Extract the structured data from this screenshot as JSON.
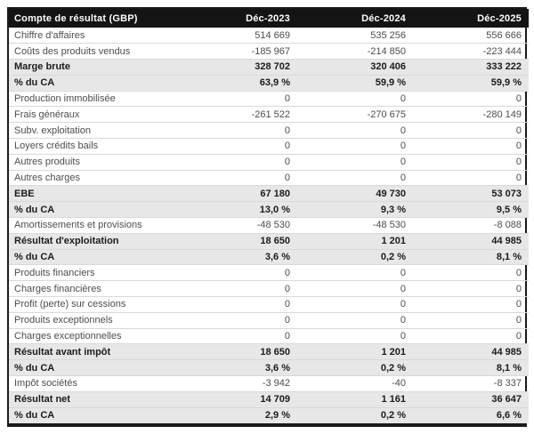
{
  "table": {
    "title": "Compte de résultat (GBP)",
    "columns": [
      "Déc-2023",
      "Déc-2024",
      "Déc-2025"
    ],
    "rows": [
      {
        "label": "Chiffre d'affaires",
        "values": [
          "514 669",
          "535 256",
          "556 666"
        ],
        "emphasis": false
      },
      {
        "label": "Coûts des produits vendus",
        "values": [
          "-185 967",
          "-214 850",
          "-223 444"
        ],
        "emphasis": false
      },
      {
        "label": "Marge brute",
        "values": [
          "328 702",
          "320 406",
          "333 222"
        ],
        "emphasis": true
      },
      {
        "label": "% du CA",
        "values": [
          "63,9 %",
          "59,9 %",
          "59,9 %"
        ],
        "emphasis": true
      },
      {
        "label": "Production immobilisée",
        "values": [
          "0",
          "0",
          "0"
        ],
        "emphasis": false
      },
      {
        "label": "Frais généraux",
        "values": [
          "-261 522",
          "-270 675",
          "-280 149"
        ],
        "emphasis": false
      },
      {
        "label": "Subv. exploitation",
        "values": [
          "0",
          "0",
          "0"
        ],
        "emphasis": false
      },
      {
        "label": "Loyers crédits bails",
        "values": [
          "0",
          "0",
          "0"
        ],
        "emphasis": false
      },
      {
        "label": "Autres produits",
        "values": [
          "0",
          "0",
          "0"
        ],
        "emphasis": false
      },
      {
        "label": "Autres charges",
        "values": [
          "0",
          "0",
          "0"
        ],
        "emphasis": false
      },
      {
        "label": "EBE",
        "values": [
          "67 180",
          "49 730",
          "53 073"
        ],
        "emphasis": true
      },
      {
        "label": "% du CA",
        "values": [
          "13,0 %",
          "9,3 %",
          "9,5 %"
        ],
        "emphasis": true
      },
      {
        "label": "Amortissements et provisions",
        "values": [
          "-48 530",
          "-48 530",
          "-8 088"
        ],
        "emphasis": false
      },
      {
        "label": "Résultat d'exploitation",
        "values": [
          "18 650",
          "1 201",
          "44 985"
        ],
        "emphasis": true
      },
      {
        "label": "% du CA",
        "values": [
          "3,6 %",
          "0,2 %",
          "8,1 %"
        ],
        "emphasis": true
      },
      {
        "label": "Produits financiers",
        "values": [
          "0",
          "0",
          "0"
        ],
        "emphasis": false
      },
      {
        "label": "Charges financières",
        "values": [
          "0",
          "0",
          "0"
        ],
        "emphasis": false
      },
      {
        "label": "Profit (perte) sur cessions",
        "values": [
          "0",
          "0",
          "0"
        ],
        "emphasis": false
      },
      {
        "label": "Produits exceptionnels",
        "values": [
          "0",
          "0",
          "0"
        ],
        "emphasis": false
      },
      {
        "label": "Charges exceptionnelles",
        "values": [
          "0",
          "0",
          "0"
        ],
        "emphasis": false
      },
      {
        "label": "Résultat avant impôt",
        "values": [
          "18 650",
          "1 201",
          "44 985"
        ],
        "emphasis": true
      },
      {
        "label": "% du CA",
        "values": [
          "3,6 %",
          "0,2 %",
          "8,1 %"
        ],
        "emphasis": true
      },
      {
        "label": "Impôt sociétés",
        "values": [
          "-3 942",
          "-40",
          "-8 337"
        ],
        "emphasis": false
      },
      {
        "label": "Résultat net",
        "values": [
          "14 709",
          "1 161",
          "36 647"
        ],
        "emphasis": true
      },
      {
        "label": "% du CA",
        "values": [
          "2,9 %",
          "0,2 %",
          "6,6 %"
        ],
        "emphasis": true
      }
    ],
    "colors": {
      "header_bg": "#141414",
      "header_text": "#ffffff",
      "emphasis_bg": "#e7e7e7",
      "row_border": "#d9d9d9",
      "table_border": "#1a1a1a",
      "text": "#4d4d4d",
      "emphasis_text": "#1b1b1b",
      "page_bg": "#ffffff"
    }
  },
  "chart_data": {
    "type": "table",
    "title": "Compte de résultat (GBP)",
    "columns": [
      "Déc-2023",
      "Déc-2024",
      "Déc-2025"
    ],
    "currency": "GBP",
    "rows": [
      {
        "label": "Chiffre d'affaires",
        "unit": "GBP",
        "values": [
          514669,
          535256,
          556666
        ]
      },
      {
        "label": "Coûts des produits vendus",
        "unit": "GBP",
        "values": [
          -185967,
          -214850,
          -223444
        ]
      },
      {
        "label": "Marge brute",
        "unit": "GBP",
        "values": [
          328702,
          320406,
          333222
        ]
      },
      {
        "label": "% du CA",
        "unit": "%",
        "values": [
          63.9,
          59.9,
          59.9
        ]
      },
      {
        "label": "Production immobilisée",
        "unit": "GBP",
        "values": [
          0,
          0,
          0
        ]
      },
      {
        "label": "Frais généraux",
        "unit": "GBP",
        "values": [
          -261522,
          -270675,
          -280149
        ]
      },
      {
        "label": "Subv. exploitation",
        "unit": "GBP",
        "values": [
          0,
          0,
          0
        ]
      },
      {
        "label": "Loyers crédits bails",
        "unit": "GBP",
        "values": [
          0,
          0,
          0
        ]
      },
      {
        "label": "Autres produits",
        "unit": "GBP",
        "values": [
          0,
          0,
          0
        ]
      },
      {
        "label": "Autres charges",
        "unit": "GBP",
        "values": [
          0,
          0,
          0
        ]
      },
      {
        "label": "EBE",
        "unit": "GBP",
        "values": [
          67180,
          49730,
          53073
        ]
      },
      {
        "label": "% du CA",
        "unit": "%",
        "values": [
          13.0,
          9.3,
          9.5
        ]
      },
      {
        "label": "Amortissements et provisions",
        "unit": "GBP",
        "values": [
          -48530,
          -48530,
          -8088
        ]
      },
      {
        "label": "Résultat d'exploitation",
        "unit": "GBP",
        "values": [
          18650,
          1201,
          44985
        ]
      },
      {
        "label": "% du CA",
        "unit": "%",
        "values": [
          3.6,
          0.2,
          8.1
        ]
      },
      {
        "label": "Produits financiers",
        "unit": "GBP",
        "values": [
          0,
          0,
          0
        ]
      },
      {
        "label": "Charges financières",
        "unit": "GBP",
        "values": [
          0,
          0,
          0
        ]
      },
      {
        "label": "Profit (perte) sur cessions",
        "unit": "GBP",
        "values": [
          0,
          0,
          0
        ]
      },
      {
        "label": "Produits exceptionnels",
        "unit": "GBP",
        "values": [
          0,
          0,
          0
        ]
      },
      {
        "label": "Charges exceptionnelles",
        "unit": "GBP",
        "values": [
          0,
          0,
          0
        ]
      },
      {
        "label": "Résultat avant impôt",
        "unit": "GBP",
        "values": [
          18650,
          1201,
          44985
        ]
      },
      {
        "label": "% du CA",
        "unit": "%",
        "values": [
          3.6,
          0.2,
          8.1
        ]
      },
      {
        "label": "Impôt sociétés",
        "unit": "GBP",
        "values": [
          -3942,
          -40,
          -8337
        ]
      },
      {
        "label": "Résultat net",
        "unit": "GBP",
        "values": [
          14709,
          1161,
          36647
        ]
      },
      {
        "label": "% du CA",
        "unit": "%",
        "values": [
          2.9,
          0.2,
          6.6
        ]
      }
    ]
  }
}
